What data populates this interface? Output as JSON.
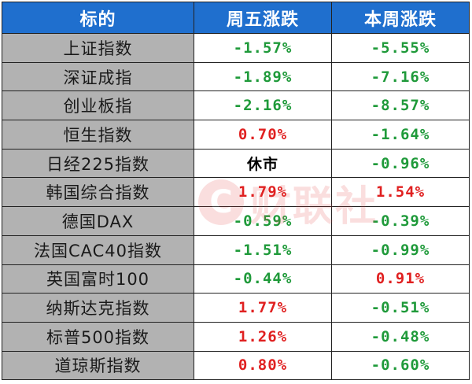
{
  "header": {
    "col_name": "标的",
    "col_fri": "周五涨跌",
    "col_week": "本周涨跌"
  },
  "rows": [
    {
      "name": "上证指数",
      "fri": "-1.57%",
      "week": "-5.55%"
    },
    {
      "name": "深证成指",
      "fri": "-1.89%",
      "week": "-7.16%"
    },
    {
      "name": "创业板指",
      "fri": "-2.16%",
      "week": "-8.57%"
    },
    {
      "name": "恒生指数",
      "fri": "0.70%",
      "week": "-1.64%"
    },
    {
      "name": "日经225指数",
      "fri": "休市",
      "week": "-0.96%"
    },
    {
      "name": "韩国综合指数",
      "fri": "1.79%",
      "week": "1.54%"
    },
    {
      "name": "德国DAX",
      "fri": "-0.59%",
      "week": "-0.39%"
    },
    {
      "name": "法国CAC40指数",
      "fri": "-1.51%",
      "week": "-0.99%"
    },
    {
      "name": "英国富时100",
      "fri": "-0.44%",
      "week": "0.91%"
    },
    {
      "name": "纳斯达克指数",
      "fri": "1.77%",
      "week": "-0.51%"
    },
    {
      "name": "标普500指数",
      "fri": "1.26%",
      "week": "-0.48%"
    },
    {
      "name": "道琼斯指数",
      "fri": "0.80%",
      "week": "-0.60%"
    }
  ],
  "colors": {
    "up": "#e02020",
    "down": "#1f9a3a",
    "header_bg": "#1f6fce",
    "name_bg": "#b2b2b2"
  },
  "watermark": {
    "logo": "C",
    "text": "财联社"
  }
}
